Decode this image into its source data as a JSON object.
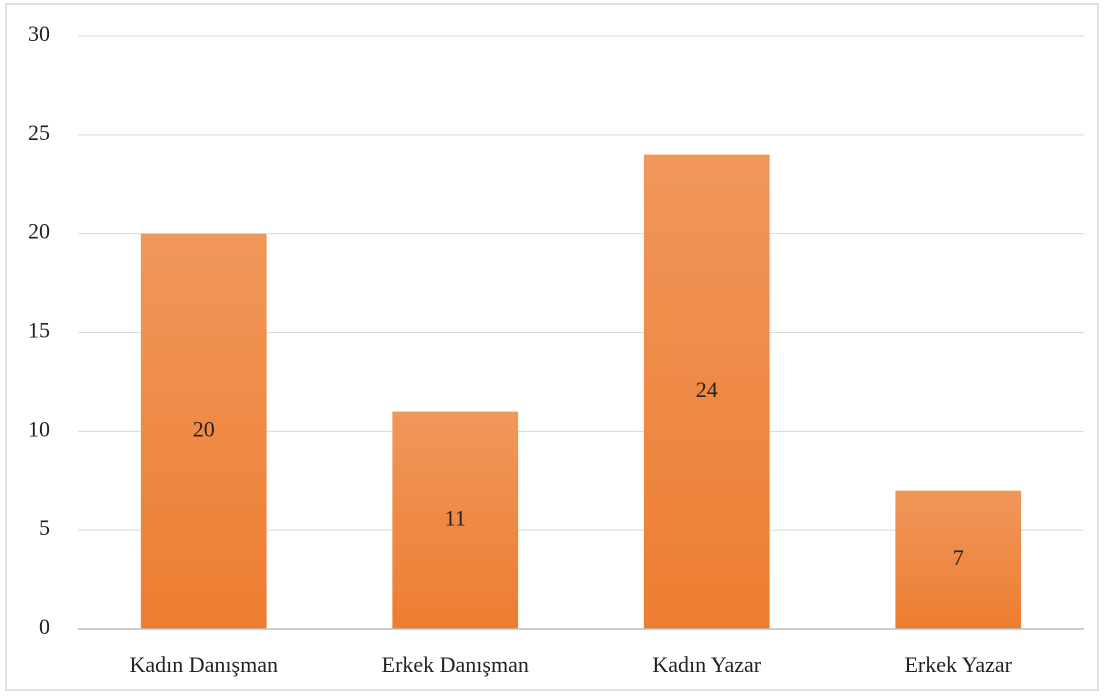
{
  "chart_data": {
    "type": "bar",
    "categories": [
      "Kadın Danışman",
      "Erkek Danışman",
      "Kadın Yazar",
      "Erkek Yazar"
    ],
    "values": [
      20,
      11,
      24,
      7
    ],
    "color": "#ed7d31",
    "ylim": [
      0,
      30
    ],
    "yticks": [
      0,
      5,
      10,
      15,
      20,
      25,
      30
    ],
    "grid": true,
    "data_labels": true
  }
}
